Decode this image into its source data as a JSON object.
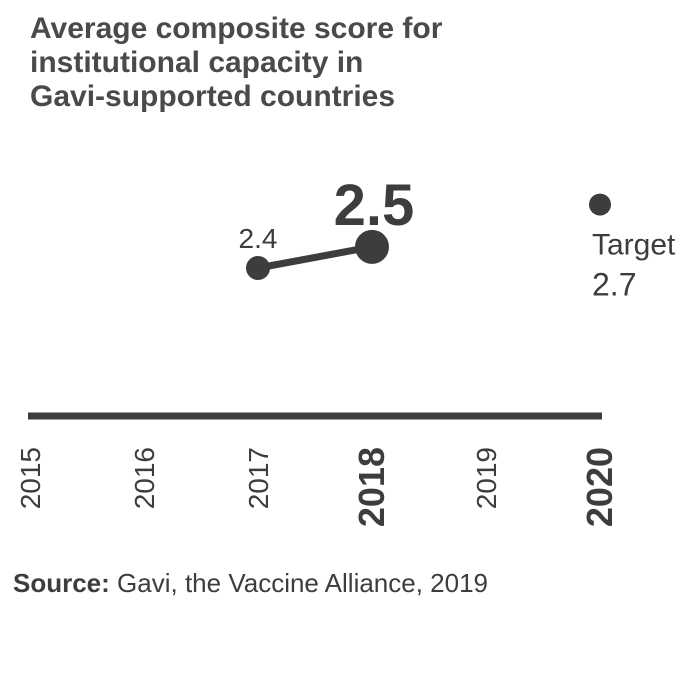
{
  "chart_data": {
    "type": "line",
    "title": "Average composite score for institutional capacity in Gavi-supported countries",
    "title_lines": [
      "Average composite score for",
      "institutional capacity in",
      "Gavi-supported countries"
    ],
    "x": [
      2015,
      2016,
      2017,
      2018,
      2019,
      2020
    ],
    "tick_labels": [
      "2015",
      "2016",
      "2017",
      "2018",
      "2019",
      "2020"
    ],
    "highlighted_ticks": [
      "2018",
      "2020"
    ],
    "xlim": [
      2015,
      2020
    ],
    "ylim": [
      1.7,
      3.1
    ],
    "series": [
      {
        "name": "Average composite score",
        "points": [
          {
            "x": 2017,
            "y": 2.4,
            "label": "2.4",
            "emphasis": false
          },
          {
            "x": 2018,
            "y": 2.5,
            "label": "2.5",
            "emphasis": true
          }
        ]
      }
    ],
    "target": {
      "x": 2020,
      "y": 2.7,
      "label": "Target",
      "value_label": "2.7"
    },
    "xlabel": "",
    "ylabel": ""
  },
  "source": {
    "label": "Source:",
    "text": "Gavi, the Vaccine Alliance, 2019"
  },
  "colors": {
    "ink": "#3d3d3d",
    "title": "#4a4a4a"
  }
}
